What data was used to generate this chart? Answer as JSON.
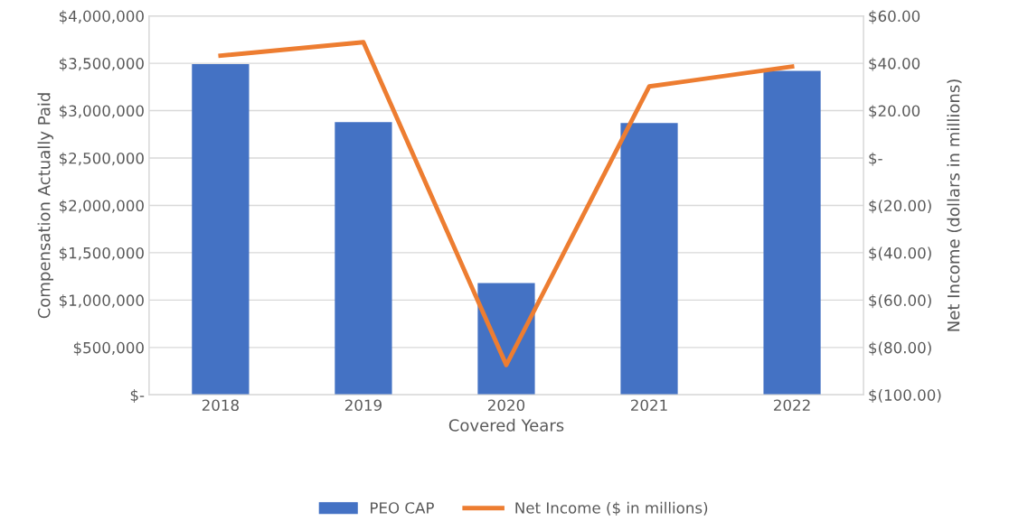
{
  "chart_data": {
    "type": "bar",
    "xlabel": "Covered Years",
    "ylabel": "Compensation Actually Paid",
    "y2label": "Net Income (dollars in millions)",
    "categories": [
      "2018",
      "2019",
      "2020",
      "2021",
      "2022"
    ],
    "series": [
      {
        "name": "PEO CAP",
        "color": "#4472c4",
        "values": [
          3490000,
          2880000,
          1180000,
          2870000,
          3420000
        ]
      },
      {
        "name": "Net Income ($ in millions)",
        "type": "line",
        "axis": "y2",
        "color": "#ed7d31",
        "values": [
          43.2,
          48.9,
          -87.4,
          30.2,
          38.6
        ]
      }
    ],
    "ylim": [
      0,
      4000000
    ],
    "yticks": [
      {
        "value": 0,
        "label": "$-"
      },
      {
        "value": 500000,
        "label": "$500,000"
      },
      {
        "value": 1000000,
        "label": "$1,000,000"
      },
      {
        "value": 1500000,
        "label": "$1,500,000"
      },
      {
        "value": 2000000,
        "label": "$2,000,000"
      },
      {
        "value": 2500000,
        "label": "$2,500,000"
      },
      {
        "value": 3000000,
        "label": "$3,000,000"
      },
      {
        "value": 3500000,
        "label": "$3,500,000"
      },
      {
        "value": 4000000,
        "label": "$4,000,000"
      }
    ],
    "y2lim": [
      -100,
      60
    ],
    "y2ticks": [
      {
        "value": -100,
        "label": "$(100.00)"
      },
      {
        "value": -80,
        "label": "$(80.00)"
      },
      {
        "value": -60,
        "label": "$(60.00)"
      },
      {
        "value": -40,
        "label": "$(40.00)"
      },
      {
        "value": -20,
        "label": "$(20.00)"
      },
      {
        "value": 0,
        "label": "$-"
      },
      {
        "value": 20,
        "label": "$20.00"
      },
      {
        "value": 40,
        "label": "$40.00"
      },
      {
        "value": 60,
        "label": "$60.00"
      }
    ],
    "grid": "y",
    "legend": "bottom",
    "marker": "none",
    "line_style": "solid"
  }
}
